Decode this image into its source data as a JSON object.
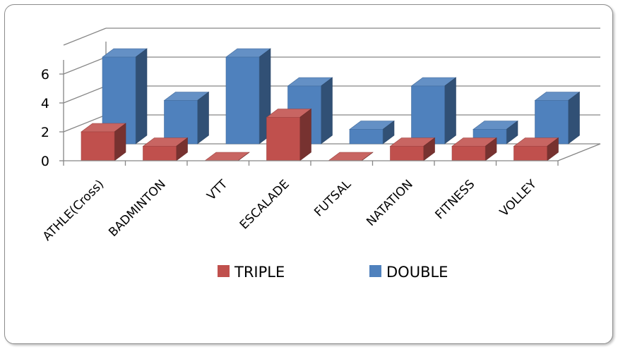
{
  "chart_data": {
    "type": "bar",
    "title": "",
    "xlabel": "",
    "ylabel": "",
    "categories": [
      "ATHLE(Cross)",
      "BADMINTON",
      "VTT",
      "ESCALADE",
      "FUTSAL",
      "NATATION",
      "FITNESS",
      "VOLLEY"
    ],
    "series": [
      {
        "name": "TRIPLE",
        "color": "#c0504d",
        "values": [
          2,
          1,
          0,
          3,
          0,
          1,
          1,
          1
        ]
      },
      {
        "name": "DOUBLE",
        "color": "#4f81bd",
        "values": [
          6,
          3,
          6,
          4,
          1,
          4,
          1,
          3
        ]
      }
    ],
    "ylim": [
      0,
      6
    ],
    "yticks": [
      0,
      2,
      4,
      6
    ],
    "grid": true,
    "legend": "bottom",
    "view": "3d-clustered-columns"
  }
}
